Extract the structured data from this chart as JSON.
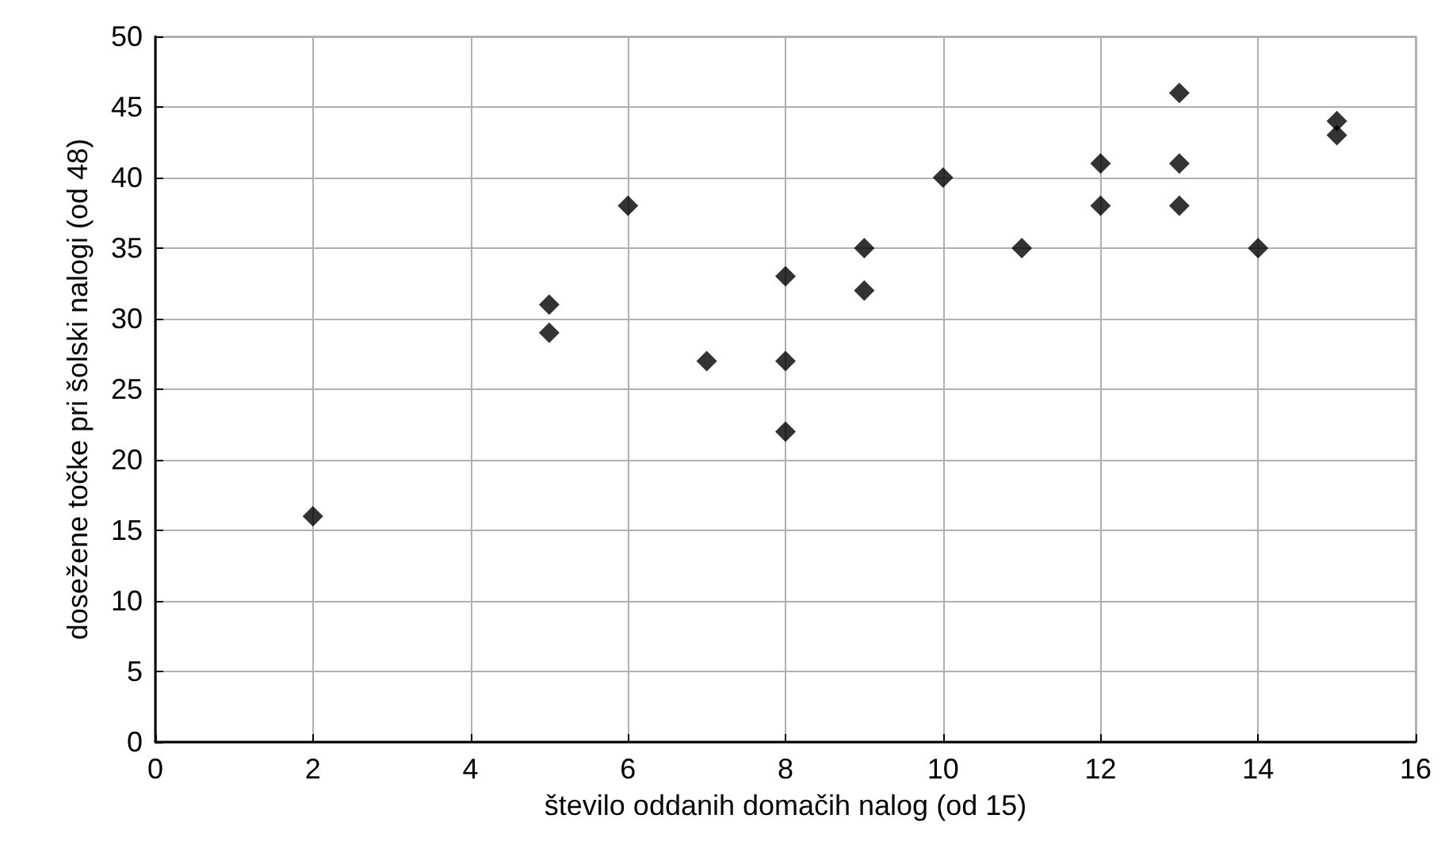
{
  "chart_data": {
    "type": "scatter",
    "xlabel": "število oddanih domačih nalog (od 15)",
    "ylabel": "dosežene točke pri šolski nalogi (od 48)",
    "x": [
      2,
      5,
      5,
      6,
      7,
      8,
      8,
      8,
      9,
      9,
      10,
      11,
      12,
      12,
      13,
      13,
      13,
      14,
      15,
      15
    ],
    "values": [
      16,
      31,
      29,
      38,
      27,
      33,
      27,
      22,
      35,
      32,
      40,
      35,
      41,
      38,
      46,
      41,
      38,
      35,
      44,
      43
    ],
    "color": "#000000",
    "marker": "diamond",
    "grid": true,
    "xlim": [
      0,
      16
    ],
    "xticks": [
      0,
      2,
      4,
      6,
      8,
      10,
      12,
      14,
      16
    ],
    "ylim": [
      0,
      50
    ],
    "yticks": [
      0,
      5,
      10,
      15,
      20,
      25,
      30,
      35,
      40,
      45,
      50
    ]
  }
}
